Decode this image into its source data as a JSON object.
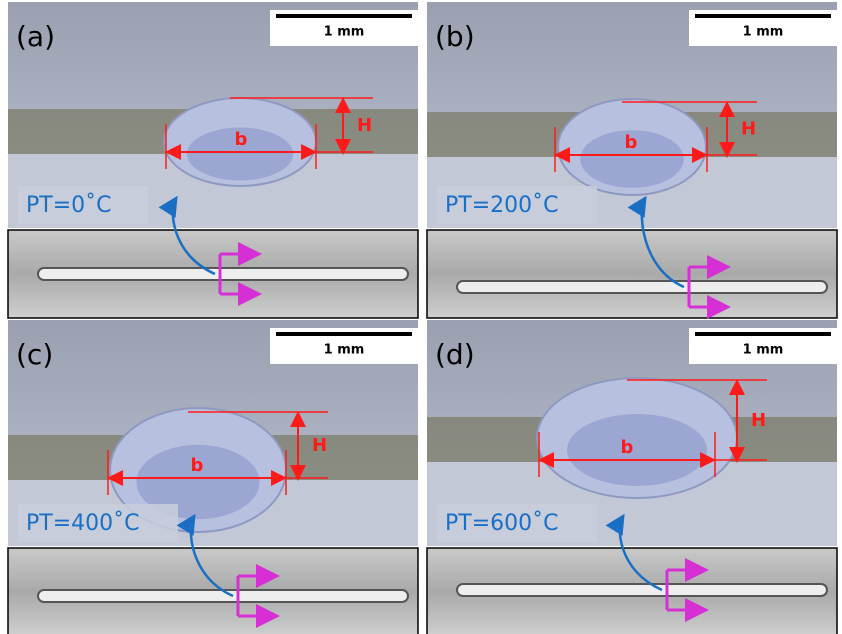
{
  "panels": [
    {
      "label": "(a)",
      "scale_bar": "1 mm",
      "height_label": "H",
      "width_label": "b",
      "condition": "PT=0˚C"
    },
    {
      "label": "(b)",
      "scale_bar": "1 mm",
      "height_label": "H",
      "width_label": "b",
      "condition": "PT=200˚C"
    },
    {
      "label": "(c)",
      "scale_bar": "1 mm",
      "height_label": "H",
      "width_label": "b",
      "condition": "PT=400˚C"
    },
    {
      "label": "(d)",
      "scale_bar": "1 mm",
      "height_label": "H",
      "width_label": "b",
      "condition": "PT=600˚C"
    }
  ]
}
